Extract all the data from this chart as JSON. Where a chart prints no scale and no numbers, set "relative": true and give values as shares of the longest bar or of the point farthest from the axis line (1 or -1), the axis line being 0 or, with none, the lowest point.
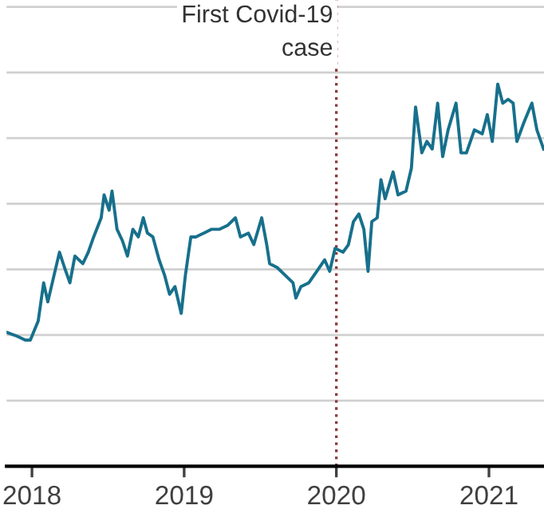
{
  "chart_data": {
    "type": "line",
    "relative": true,
    "x": [
      "2017-11-02",
      "2017-11-27",
      "2017-12-16",
      "2017-12-28",
      "2018-01-16",
      "2018-01-29",
      "2018-02-08",
      "2018-02-23",
      "2018-03-08",
      "2018-03-20",
      "2018-04-02",
      "2018-04-14",
      "2018-05-03",
      "2018-05-16",
      "2018-05-29",
      "2018-06-16",
      "2018-06-23",
      "2018-07-05",
      "2018-07-12",
      "2018-07-24",
      "2018-08-06",
      "2018-08-18",
      "2018-08-31",
      "2018-09-13",
      "2018-09-25",
      "2018-10-05",
      "2018-10-18",
      "2018-11-02",
      "2018-11-15",
      "2018-11-27",
      "2018-12-10",
      "2018-12-25",
      "2019-01-04",
      "2019-01-17",
      "2019-01-29",
      "2019-02-17",
      "2019-03-08",
      "2019-03-27",
      "2019-04-15",
      "2019-05-04",
      "2019-05-16",
      "2019-06-04",
      "2019-06-17",
      "2019-07-06",
      "2019-07-18",
      "2019-07-25",
      "2019-08-12",
      "2019-08-31",
      "2019-09-19",
      "2019-09-26",
      "2019-10-08",
      "2019-10-27",
      "2019-11-15",
      "2019-12-04",
      "2019-12-16",
      "2019-12-29",
      "2020-01-17",
      "2020-01-30",
      "2020-02-11",
      "2020-02-24",
      "2020-03-07",
      "2020-03-17",
      "2020-03-26",
      "2020-04-08",
      "2020-04-17",
      "2020-04-27",
      "2020-05-16",
      "2020-05-28",
      "2020-06-16",
      "2020-06-29",
      "2020-07-09",
      "2020-07-24",
      "2020-08-05",
      "2020-08-18",
      "2020-08-31",
      "2020-09-12",
      "2020-09-25",
      "2020-10-14",
      "2020-10-26",
      "2020-11-08",
      "2020-11-27",
      "2020-12-16",
      "2020-12-28",
      "2021-01-09",
      "2021-01-22",
      "2021-02-03",
      "2021-02-16",
      "2021-02-28",
      "2021-03-09",
      "2021-03-26",
      "2021-04-14",
      "2021-04-26",
      "2021-05-12"
    ],
    "series": [
      {
        "color": "#17708c",
        "values": [
          0.35,
          0.34,
          0.33,
          0.33,
          0.38,
          0.48,
          0.43,
          0.5,
          0.56,
          0.52,
          0.48,
          0.55,
          0.53,
          0.56,
          0.6,
          0.65,
          0.71,
          0.67,
          0.72,
          0.62,
          0.59,
          0.55,
          0.62,
          0.6,
          0.65,
          0.61,
          0.6,
          0.54,
          0.5,
          0.45,
          0.47,
          0.4,
          0.5,
          0.6,
          0.6,
          0.61,
          0.62,
          0.62,
          0.63,
          0.65,
          0.6,
          0.61,
          0.58,
          0.65,
          0.58,
          0.53,
          0.52,
          0.5,
          0.48,
          0.44,
          0.47,
          0.48,
          0.51,
          0.54,
          0.51,
          0.57,
          0.56,
          0.58,
          0.64,
          0.66,
          0.62,
          0.51,
          0.64,
          0.65,
          0.75,
          0.7,
          0.77,
          0.71,
          0.72,
          0.78,
          0.94,
          0.82,
          0.85,
          0.83,
          0.95,
          0.81,
          0.88,
          0.95,
          0.82,
          0.82,
          0.88,
          0.87,
          0.92,
          0.85,
          1,
          0.95,
          0.96,
          0.95,
          0.85,
          0.9,
          0.95,
          0.88,
          0.83
        ]
      }
    ],
    "xlim": [
      "2017-11-01",
      "2021-05-13"
    ],
    "xticks": [
      {
        "value": "2018",
        "label": "2018"
      },
      {
        "value": "2019",
        "label": "2019"
      },
      {
        "value": "2020",
        "label": "2020"
      },
      {
        "value": "2021",
        "label": "2021"
      }
    ],
    "ref_lines": [
      {
        "axis": "x",
        "value": "2020-01-01",
        "label": "First Covid-19\ncase",
        "color": "#8b3a3a",
        "line_style": "dotted"
      }
    ],
    "grid": "y",
    "legend": false,
    "marker": "none",
    "line_style": "solid"
  }
}
